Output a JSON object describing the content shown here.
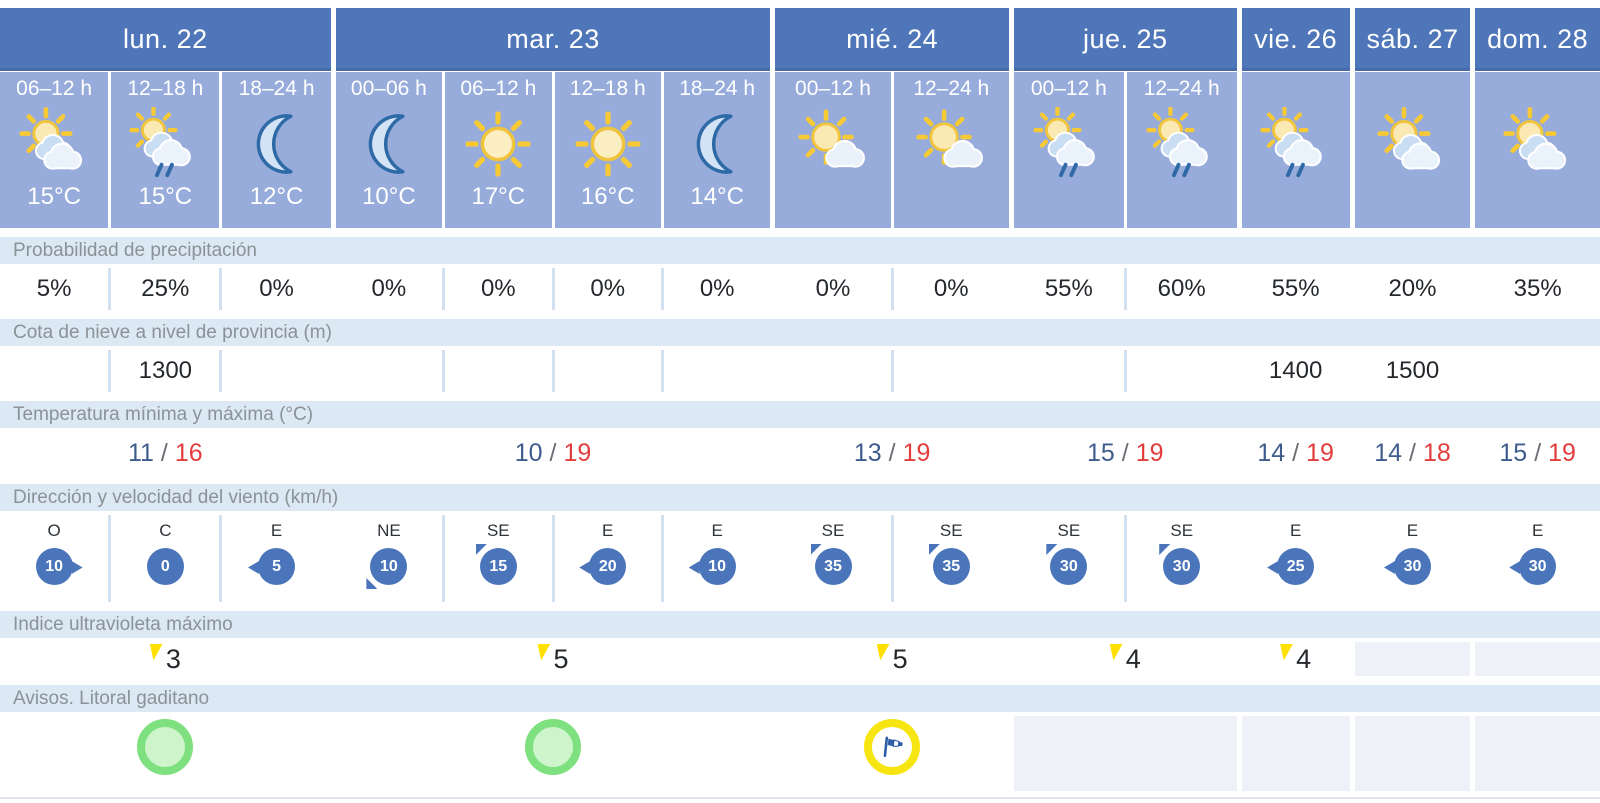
{
  "table": {
    "days": [
      {
        "label": "lun. 22",
        "cols": [
          {
            "time": "06–12 h",
            "icon": "sun-clouds",
            "temp": "15°C"
          },
          {
            "time": "12–18 h",
            "icon": "sun-rain",
            "temp": "15°C"
          },
          {
            "time": "18–24 h",
            "icon": "moon",
            "temp": "12°C"
          }
        ]
      },
      {
        "label": "mar. 23",
        "cols": [
          {
            "time": "00–06 h",
            "icon": "moon",
            "temp": "10°C"
          },
          {
            "time": "06–12 h",
            "icon": "sun",
            "temp": "17°C"
          },
          {
            "time": "12–18 h",
            "icon": "sun",
            "temp": "16°C"
          },
          {
            "time": "18–24 h",
            "icon": "moon",
            "temp": "14°C"
          }
        ]
      },
      {
        "label": "mié. 24",
        "cols": [
          {
            "time": "00–12 h",
            "icon": "sun-cloud",
            "temp": ""
          },
          {
            "time": "12–24 h",
            "icon": "sun-cloud",
            "temp": ""
          }
        ]
      },
      {
        "label": "jue. 25",
        "cols": [
          {
            "time": "00–12 h",
            "icon": "sun-rain",
            "temp": ""
          },
          {
            "time": "12–24 h",
            "icon": "sun-rain",
            "temp": ""
          }
        ]
      },
      {
        "label": "vie. 26",
        "cols": [
          {
            "time": "",
            "icon": "sun-rain",
            "temp": ""
          }
        ]
      },
      {
        "label": "sáb. 27",
        "cols": [
          {
            "time": "",
            "icon": "sun-clouds",
            "temp": ""
          }
        ]
      },
      {
        "label": "dom. 28",
        "cols": [
          {
            "time": "",
            "icon": "sun-clouds",
            "temp": ""
          }
        ]
      }
    ],
    "rows": {
      "precipitation": {
        "label": "Probabilidad de precipitación",
        "values": [
          "5%",
          "25%",
          "0%",
          "0%",
          "0%",
          "0%",
          "0%",
          "0%",
          "0%",
          "55%",
          "60%",
          "55%",
          "20%",
          "35%"
        ]
      },
      "snow": {
        "label": "Cota de nieve a nivel de provincia (m)",
        "values": [
          "",
          "1300",
          "",
          "",
          "",
          "",
          "",
          "",
          "",
          "",
          "",
          "1400",
          "1500",
          ""
        ]
      },
      "temperature": {
        "label": "Temperatura mínima y máxima (°C)",
        "sep": "/",
        "values": [
          {
            "min": "11",
            "max": "16"
          },
          {
            "min": "10",
            "max": "19"
          },
          {
            "min": "13",
            "max": "19"
          },
          {
            "min": "15",
            "max": "19"
          },
          {
            "min": "14",
            "max": "19"
          },
          {
            "min": "14",
            "max": "18"
          },
          {
            "min": "15",
            "max": "19"
          }
        ]
      },
      "wind": {
        "label": "Dirección y velocidad del viento (km/h)",
        "values": [
          {
            "dir": "O",
            "speed": "10",
            "arrow": "right"
          },
          {
            "dir": "C",
            "speed": "0",
            "arrow": "none"
          },
          {
            "dir": "E",
            "speed": "5",
            "arrow": "left"
          },
          {
            "dir": "NE",
            "speed": "10",
            "arrow": "down-left"
          },
          {
            "dir": "SE",
            "speed": "15",
            "arrow": "up-left"
          },
          {
            "dir": "E",
            "speed": "20",
            "arrow": "left"
          },
          {
            "dir": "E",
            "speed": "10",
            "arrow": "left"
          },
          {
            "dir": "SE",
            "speed": "35",
            "arrow": "up-left"
          },
          {
            "dir": "SE",
            "speed": "35",
            "arrow": "up-left"
          },
          {
            "dir": "SE",
            "speed": "30",
            "arrow": "up-left"
          },
          {
            "dir": "SE",
            "speed": "30",
            "arrow": "up-left"
          },
          {
            "dir": "E",
            "speed": "25",
            "arrow": "left"
          },
          {
            "dir": "E",
            "speed": "30",
            "arrow": "left"
          },
          {
            "dir": "E",
            "speed": "30",
            "arrow": "left"
          }
        ]
      },
      "uv": {
        "label": "Indice ultravioleta máximo",
        "values": [
          "3",
          "5",
          "5",
          "4",
          "4",
          "",
          ""
        ]
      },
      "warnings": {
        "label": "Avisos. Litoral gaditano",
        "values": [
          "green",
          "green",
          "yellow-wind",
          "",
          "",
          "",
          ""
        ]
      }
    },
    "colors": {
      "day_header": "#4f76b8",
      "time_band": "#98acdc",
      "label_bg": "#dce8f3",
      "label_text": "#8b9298",
      "wind_circle": "#4a75ba",
      "temp_min": "#3f5d8c",
      "temp_max": "#e23d3d",
      "uv_flag": "#ffe000",
      "warning_green": "#7ee07e",
      "warning_yellow": "#f6e511",
      "rain_stroke": "#2e6aa5",
      "sun_fill": "#fbeec3",
      "sun_stroke": "#f0c53c"
    }
  }
}
